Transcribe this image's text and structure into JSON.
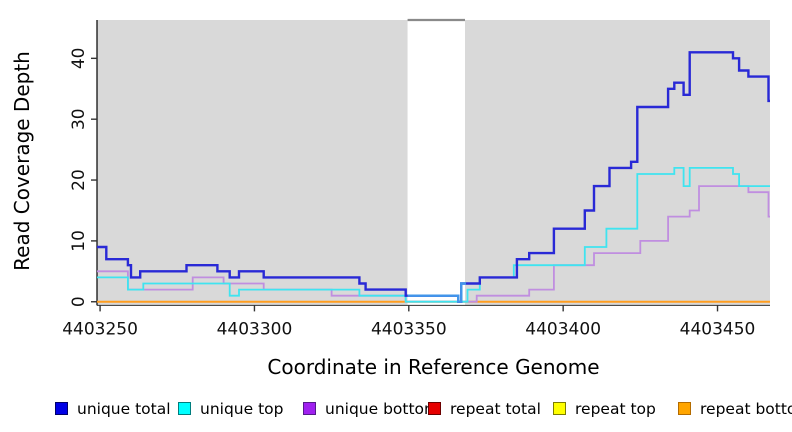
{
  "figure": {
    "y_axis_label": "Read Coverage Depth",
    "x_axis_label": "Coordinate in Reference Genome"
  },
  "chart_data": {
    "type": "line",
    "step": true,
    "title": "",
    "xlabel": "Coordinate in Reference Genome",
    "ylabel": "Read Coverage Depth",
    "xlim": [
      4403249,
      4403467
    ],
    "ylim": [
      -0.6,
      46.3
    ],
    "x_ticks": [
      4403250,
      4403300,
      4403350,
      4403400,
      4403450
    ],
    "y_ticks": [
      0,
      10,
      20,
      30,
      40
    ],
    "grid": false,
    "plot_bg": "#d9d9d9",
    "gap_region": {
      "from": 4403349.6,
      "to": 4403368.2,
      "fill": "#ffffff",
      "top_line_color": "#8a8a8a",
      "coverage_overlay_color": "#4296ea"
    },
    "legend_position": "bottom",
    "series": [
      {
        "name": "repeat total",
        "color": "#e03131",
        "width": 1.5,
        "points": [
          [
            4403249,
            0
          ],
          [
            4403467,
            0
          ]
        ]
      },
      {
        "name": "repeat top",
        "color": "#ffe400",
        "width": 1.5,
        "points": [
          [
            4403249,
            0
          ],
          [
            4403467,
            0
          ]
        ]
      },
      {
        "name": "repeat bottom",
        "color": "#ff9e20",
        "width": 2,
        "points": [
          [
            4403249,
            0
          ],
          [
            4403467,
            0
          ]
        ]
      },
      {
        "name": "unique bottom",
        "color": "#c08ee0",
        "width": 1.8,
        "points": [
          [
            4403249,
            5
          ],
          [
            4403259,
            2
          ],
          [
            4403280,
            4
          ],
          [
            4403290,
            3
          ],
          [
            4403303,
            2
          ],
          [
            4403325,
            1
          ],
          [
            4403349,
            0
          ],
          [
            4403372,
            1
          ],
          [
            4403389,
            2
          ],
          [
            4403397,
            6
          ],
          [
            4403410,
            8
          ],
          [
            4403425,
            10
          ],
          [
            4403434,
            14
          ],
          [
            4403441,
            15
          ],
          [
            4403444,
            19
          ],
          [
            4403460,
            18
          ],
          [
            4403466.5,
            14
          ],
          [
            4403467,
            14
          ]
        ]
      },
      {
        "name": "unique top",
        "color": "#3fe4f0",
        "width": 1.8,
        "points": [
          [
            4403249,
            4
          ],
          [
            4403259,
            2
          ],
          [
            4403264,
            3
          ],
          [
            4403292,
            1
          ],
          [
            4403295,
            2
          ],
          [
            4403334,
            1
          ],
          [
            4403349,
            0
          ],
          [
            4403369,
            2
          ],
          [
            4403373,
            4
          ],
          [
            4403384,
            6
          ],
          [
            4403407,
            9
          ],
          [
            4403414,
            12
          ],
          [
            4403424,
            21
          ],
          [
            4403436,
            22
          ],
          [
            4403439,
            19
          ],
          [
            4403441,
            22
          ],
          [
            4403455,
            21
          ],
          [
            4403457,
            19
          ],
          [
            4403467,
            19
          ]
        ]
      },
      {
        "name": "unique total",
        "color": "#2929d6",
        "width": 2.4,
        "points": [
          [
            4403249,
            9
          ],
          [
            4403252,
            7
          ],
          [
            4403259,
            6
          ],
          [
            4403260,
            4
          ],
          [
            4403263,
            5
          ],
          [
            4403278,
            6
          ],
          [
            4403288,
            5
          ],
          [
            4403292,
            4
          ],
          [
            4403295,
            5
          ],
          [
            4403303,
            4
          ],
          [
            4403334,
            3
          ],
          [
            4403336,
            2
          ],
          [
            4403349,
            1
          ],
          [
            4403366,
            0
          ],
          [
            4403367,
            3
          ],
          [
            4403373,
            4
          ],
          [
            4403385,
            7
          ],
          [
            4403389,
            8
          ],
          [
            4403397,
            12
          ],
          [
            4403407,
            15
          ],
          [
            4403410,
            19
          ],
          [
            4403415,
            22
          ],
          [
            4403422,
            23
          ],
          [
            4403424,
            32
          ],
          [
            4403434,
            35
          ],
          [
            4403436,
            36
          ],
          [
            4403439,
            34
          ],
          [
            4403441,
            41
          ],
          [
            4403455,
            40
          ],
          [
            4403457,
            38
          ],
          [
            4403460,
            37
          ],
          [
            4403466.5,
            33
          ],
          [
            4403467,
            33
          ]
        ]
      }
    ],
    "legend": [
      {
        "label": "unique total",
        "fill": "#0000e6",
        "border": "#00006b"
      },
      {
        "label": "unique top",
        "fill": "#00ffff",
        "border": "#007d7d"
      },
      {
        "label": "unique bottom",
        "fill": "#a020f0",
        "border": "#551a8b"
      },
      {
        "label": "repeat total",
        "fill": "#e60000",
        "border": "#6b0000"
      },
      {
        "label": "repeat top",
        "fill": "#ffff00",
        "border": "#7d7d00"
      },
      {
        "label": "repeat bottom",
        "fill": "#ffa500",
        "border": "#b36b00"
      }
    ]
  }
}
